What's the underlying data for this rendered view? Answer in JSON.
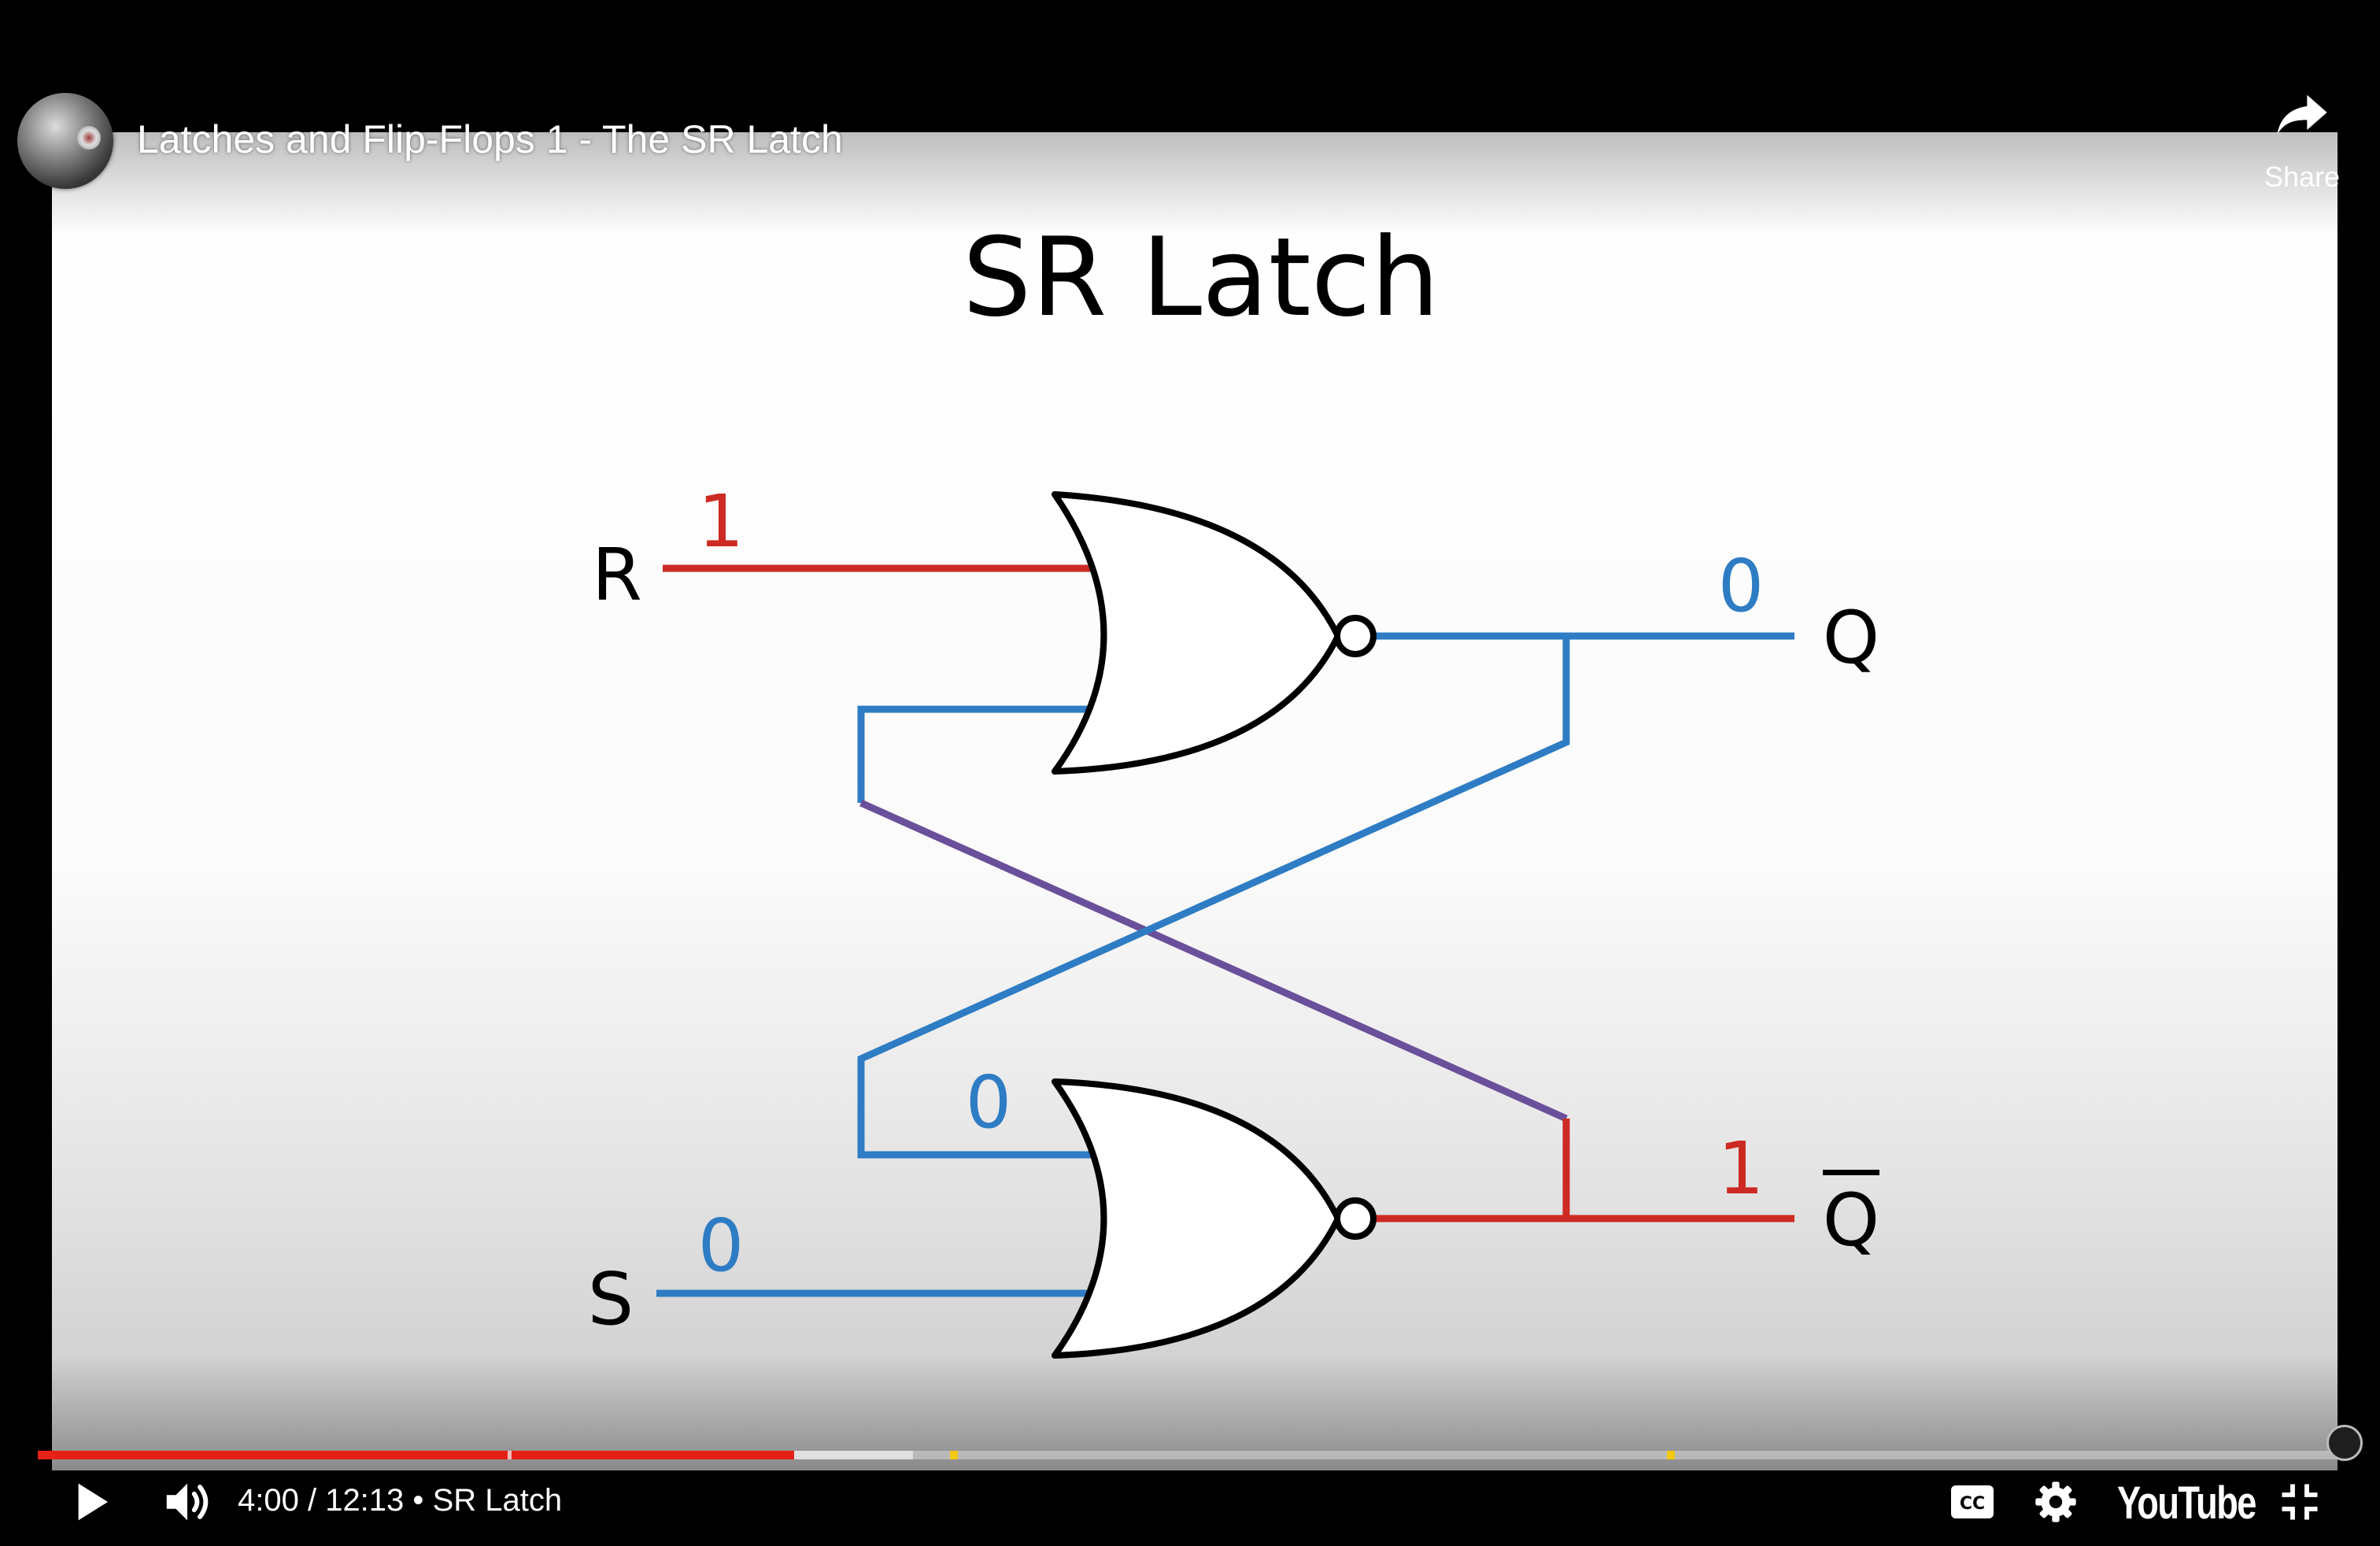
{
  "video": {
    "title": "Latches and Flip-Flops 1 - The SR Latch",
    "share_label": "Share"
  },
  "slide": {
    "title": "SR Latch",
    "inputs": {
      "r_label": "R",
      "s_label": "S"
    },
    "outputs": {
      "q_label": "Q",
      "qbar_label": "Q"
    },
    "values": {
      "r": "1",
      "s": "0",
      "q": "0",
      "qbar": "1",
      "feedback_lower": "0"
    }
  },
  "player": {
    "current_time": "4:00",
    "duration": "12:13",
    "time_text": "4:00 / 12:13",
    "separator": "•",
    "chapter": "SR Latch",
    "brand": "YouTube",
    "progress": {
      "played_fraction": 0.3281,
      "buffered_fraction": 0.3799,
      "chapter_boundaries": [
        0.204
      ],
      "ad_markers": [
        0.396,
        0.707
      ]
    }
  },
  "colors": {
    "high": "#cc2a22",
    "low": "#2e7cc4",
    "crossing": "#6a4f9a",
    "gate_stroke": "#000000",
    "progress_played": "#e62117"
  }
}
